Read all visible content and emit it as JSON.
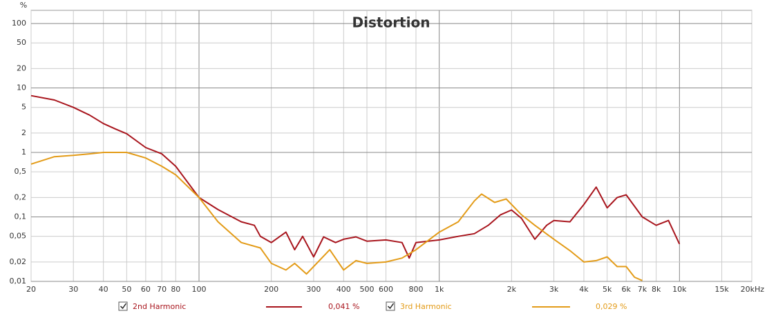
{
  "chart_data": {
    "type": "line",
    "title": "Distortion",
    "y_label": "%",
    "xlog": true,
    "ylog": true,
    "grid": true,
    "xlim": [
      20,
      20000
    ],
    "ylim": [
      0.01,
      160
    ],
    "xticks": [
      20,
      30,
      40,
      50,
      60,
      70,
      80,
      100,
      200,
      300,
      400,
      500,
      600,
      800,
      {
        "value": 1000,
        "label": "1k"
      },
      {
        "value": 2000,
        "label": "2k"
      },
      {
        "value": 3000,
        "label": "3k"
      },
      {
        "value": 4000,
        "label": "4k"
      },
      {
        "value": 5000,
        "label": "5k"
      },
      {
        "value": 6000,
        "label": "6k"
      },
      {
        "value": 7000,
        "label": "7k"
      },
      {
        "value": 8000,
        "label": "8k"
      },
      {
        "value": 10000,
        "label": "10k"
      },
      {
        "value": 15000,
        "label": "15k"
      },
      {
        "value": 20000,
        "label": "20kHz"
      }
    ],
    "yticks": [
      {
        "value": 0.01,
        "label": "0,01"
      },
      {
        "value": 0.02,
        "label": "0,02"
      },
      {
        "value": 0.05,
        "label": "0,05"
      },
      {
        "value": 0.1,
        "label": "0,1"
      },
      {
        "value": 0.2,
        "label": "0,2"
      },
      {
        "value": 0.5,
        "label": "0,5"
      },
      1,
      2,
      5,
      10,
      20,
      50,
      100
    ],
    "series": [
      {
        "name": "2nd Harmonic",
        "color": "#a8141c",
        "legend_value": "0,041 %",
        "x": [
          20,
          25,
          30,
          35,
          40,
          45,
          50,
          60,
          70,
          80,
          100,
          120,
          150,
          170,
          180,
          200,
          230,
          250,
          270,
          300,
          330,
          370,
          400,
          450,
          500,
          600,
          700,
          750,
          800,
          1000,
          1200,
          1400,
          1600,
          1800,
          2000,
          2200,
          2500,
          2800,
          3000,
          3500,
          4000,
          4500,
          5000,
          5500,
          6000,
          7000,
          8000,
          9000,
          10000
        ],
        "values": [
          7.6,
          6.5,
          5.0,
          3.8,
          2.8,
          2.3,
          1.95,
          1.19,
          0.95,
          0.61,
          0.2,
          0.13,
          0.084,
          0.074,
          0.05,
          0.04,
          0.058,
          0.031,
          0.05,
          0.024,
          0.049,
          0.04,
          0.045,
          0.049,
          0.042,
          0.044,
          0.04,
          0.023,
          0.04,
          0.044,
          0.05,
          0.055,
          0.074,
          0.108,
          0.128,
          0.095,
          0.045,
          0.074,
          0.088,
          0.084,
          0.156,
          0.29,
          0.138,
          0.2,
          0.22,
          0.1,
          0.074,
          0.088,
          0.038
        ]
      },
      {
        "name": "3rd Harmonic",
        "color": "#e39b17",
        "legend_value": "0,029 %",
        "x": [
          20,
          25,
          30,
          35,
          40,
          50,
          60,
          70,
          80,
          100,
          120,
          150,
          180,
          200,
          230,
          250,
          280,
          300,
          350,
          400,
          450,
          500,
          600,
          700,
          800,
          1000,
          1200,
          1400,
          1500,
          1700,
          1900,
          2200,
          2500,
          3000,
          3500,
          4000,
          4500,
          5000,
          5500,
          6000,
          6500,
          7000
        ],
        "values": [
          0.66,
          0.86,
          0.9,
          0.95,
          1.0,
          1.0,
          0.82,
          0.61,
          0.45,
          0.2,
          0.084,
          0.04,
          0.033,
          0.019,
          0.015,
          0.019,
          0.013,
          0.017,
          0.031,
          0.015,
          0.021,
          0.019,
          0.02,
          0.023,
          0.031,
          0.058,
          0.084,
          0.177,
          0.226,
          0.168,
          0.19,
          0.108,
          0.074,
          0.045,
          0.03,
          0.02,
          0.021,
          0.024,
          0.017,
          0.017,
          0.0116,
          0.0103
        ]
      }
    ]
  }
}
